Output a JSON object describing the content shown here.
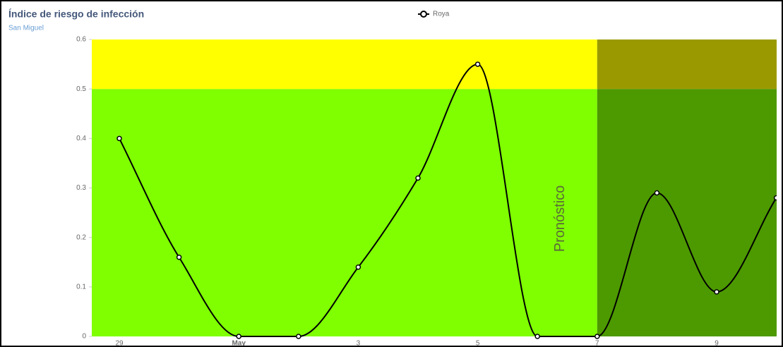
{
  "chart_data": {
    "type": "line",
    "title": "Índice de riesgo de infección",
    "subtitle": "San Miguel",
    "categories": [
      "29",
      null,
      "May",
      null,
      "3",
      null,
      "5",
      null,
      "7",
      null,
      "9",
      null
    ],
    "series": [
      {
        "name": "Roya",
        "color": "#000000",
        "values": [
          0.4,
          0.16,
          0,
          0,
          0.14,
          0.32,
          0.55,
          0,
          0,
          0.29,
          0.09,
          0.28
        ]
      }
    ],
    "ylim": [
      0,
      0.6
    ],
    "yticks": [
      0,
      0.1,
      0.2,
      0.3,
      0.4,
      0.5,
      0.6
    ],
    "bands": [
      {
        "from": 0,
        "to": 0.5,
        "color": "#7fff00",
        "forecast_color": "#4d9900"
      },
      {
        "from": 0.5,
        "to": 0.6,
        "color": "#ffff00",
        "forecast_color": "#9a9a00"
      }
    ],
    "forecast": {
      "label": "Pronóstico",
      "from": "7"
    },
    "legend": "top"
  }
}
